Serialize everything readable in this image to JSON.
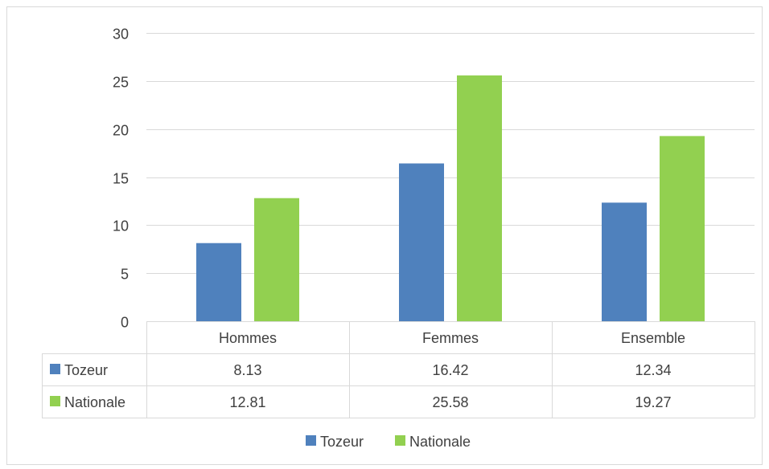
{
  "chart_data": {
    "type": "bar",
    "title": "",
    "xlabel": "",
    "ylabel": "",
    "categories": [
      "Hommes",
      "Femmes",
      "Ensemble"
    ],
    "series": [
      {
        "name": "Tozeur",
        "color": "#4f81bd",
        "values": [
          8.13,
          16.42,
          12.34
        ]
      },
      {
        "name": "Nationale",
        "color": "#92d050",
        "values": [
          12.81,
          25.58,
          19.27
        ]
      }
    ],
    "ylim": [
      0,
      30
    ],
    "yticks": [
      0,
      5,
      10,
      15,
      20,
      25,
      30
    ],
    "grid": true,
    "legend_position": "bottom",
    "data_table": true,
    "table_cells": [
      [
        "8.13",
        "16.42",
        "12.34"
      ],
      [
        "12.81",
        "25.58",
        "19.27"
      ]
    ]
  }
}
